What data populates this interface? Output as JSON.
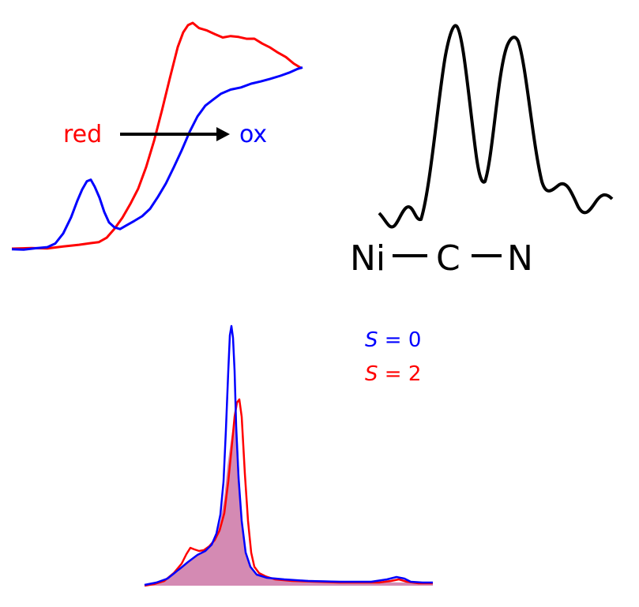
{
  "panel_xas": {
    "label_red": "red",
    "label_ox": "ox",
    "colors": {
      "red": "#ff0000",
      "ox": "#0000ff",
      "arrow": "#000000"
    }
  },
  "panel_exafs": {
    "atom_1": "Ni",
    "atom_2": "C",
    "atom_3": "N",
    "colors": {
      "curve": "#000000",
      "text": "#000000"
    }
  },
  "panel_xes": {
    "legend_s0_symbol": "S",
    "legend_s0_rest": " = 0",
    "legend_s2_symbol": "S",
    "legend_s2_rest": " = 2",
    "colors": {
      "s0": "#0000ff",
      "s2": "#ff0000",
      "overlap_fill": "#d48ab3"
    }
  }
}
